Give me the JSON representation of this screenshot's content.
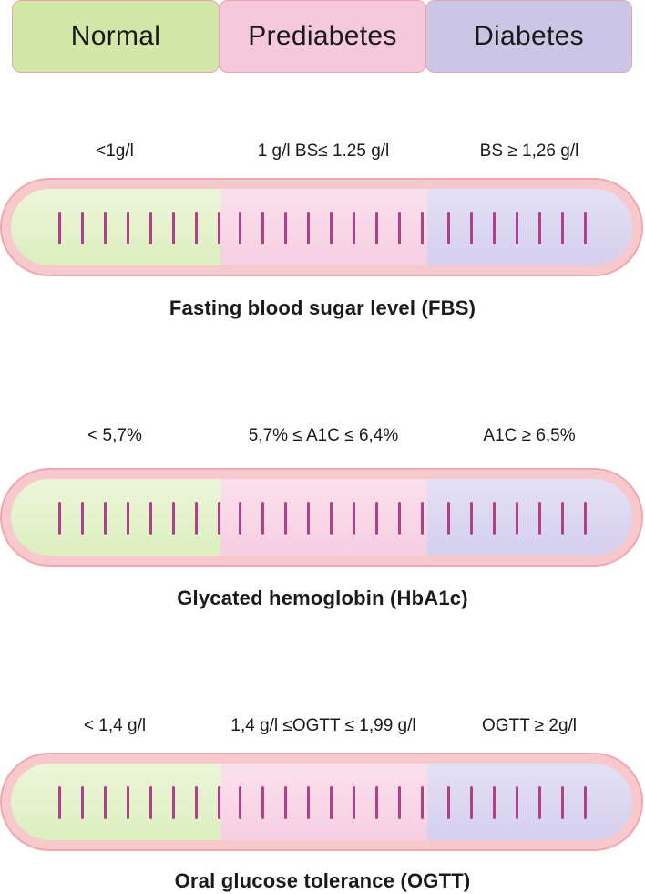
{
  "legend": {
    "normal": "Normal",
    "prediabetes": "Prediabetes",
    "diabetes": "Diabetes"
  },
  "tests": [
    {
      "name": "Fasting blood sugar level (FBS)",
      "normal_range": "<1g/l",
      "prediabetes_range": "1 g/l BS≤ 1.25 g/l",
      "diabetes_range": "BS ≥ 1,26 g/l"
    },
    {
      "name": "Glycated hemoglobin (HbA1c)",
      "normal_range": "< 5,7%",
      "prediabetes_range": "5,7% ≤ A1C ≤ 6,4%",
      "diabetes_range": "A1C ≥ 6,5%"
    },
    {
      "name": "Oral glucose tolerance (OGTT)",
      "normal_range": "< 1,4 g/l",
      "prediabetes_range": "1,4 g/l ≤OGTT ≤ 1,99 g/l",
      "diabetes_range": "OGTT ≥ 2g/l"
    }
  ],
  "colors": {
    "normal": "#d3e8a8",
    "prediabetes": "#f5c8dc",
    "diabetes": "#ccc6e6",
    "tube_border": "#f0a7b0",
    "tick": "#b0408a"
  }
}
